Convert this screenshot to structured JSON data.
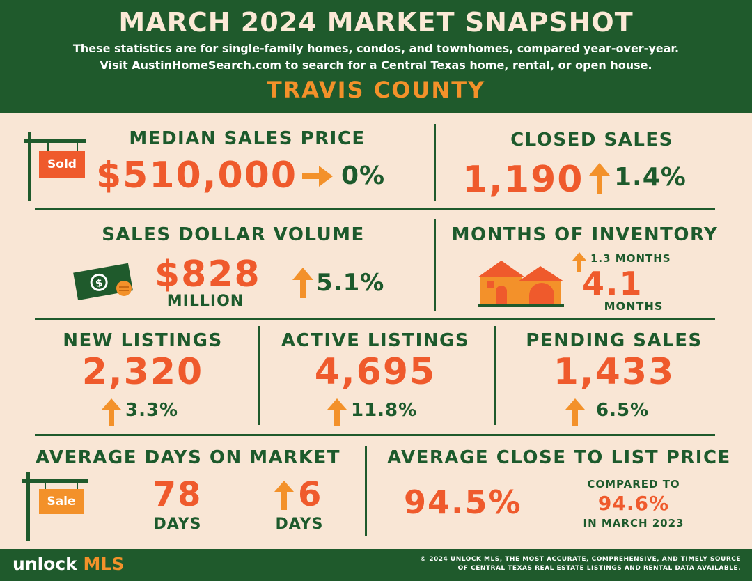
{
  "header": {
    "title": "MARCH 2024 MARKET SNAPSHOT",
    "subtitle_line1": "These statistics are for single-family homes, condos, and townhomes, compared year-over-year.",
    "subtitle_line2": "Visit AustinHomeSearch.com to search for a Central Texas home, rental, or open house.",
    "county": "TRAVIS COUNTY"
  },
  "median_sales_price": {
    "label": "MEDIAN SALES PRICE",
    "sign_text": "Sold",
    "value": "$510,000",
    "change": "0%",
    "direction": "flat"
  },
  "closed_sales": {
    "label": "CLOSED SALES",
    "value": "1,190",
    "change": "1.4%",
    "direction": "up"
  },
  "sales_dollar_volume": {
    "label": "SALES DOLLAR VOLUME",
    "value": "$828",
    "unit": "MILLION",
    "change": "5.1%",
    "direction": "up"
  },
  "months_of_inventory": {
    "label": "MONTHS OF INVENTORY",
    "change": "1.3 MONTHS",
    "value": "4.1",
    "unit": "MONTHS",
    "direction": "up"
  },
  "new_listings": {
    "label": "NEW LISTINGS",
    "value": "2,320",
    "change": "3.3%",
    "direction": "up"
  },
  "active_listings": {
    "label": "ACTIVE LISTINGS",
    "value": "4,695",
    "change": "11.8%",
    "direction": "up"
  },
  "pending_sales": {
    "label": "PENDING SALES",
    "value": "1,433",
    "change": "6.5%",
    "direction": "up"
  },
  "average_days_on_market": {
    "label": "AVERAGE DAYS ON MARKET",
    "sign_text": "Sale",
    "value": "78",
    "unit": "DAYS",
    "change": "6",
    "change_unit": "DAYS",
    "direction": "up"
  },
  "average_close_to_list": {
    "label": "AVERAGE CLOSE TO LIST PRICE",
    "value": "94.5%",
    "compared_label": "COMPARED TO",
    "compared_value": "94.6%",
    "compared_period": "IN MARCH 2023"
  },
  "footer": {
    "brand_prefix": "unlock",
    "brand_suffix": "MLS",
    "copyright_line1": "© 2024 UNLOCK MLS, THE MOST ACCURATE, COMPREHENSIVE, AND TIMELY SOURCE",
    "copyright_line2": "OF CENTRAL TEXAS REAL ESTATE LISTINGS AND RENTAL DATA AVAILABLE."
  },
  "colors": {
    "dark_green": "#1f5a2c",
    "cream": "#f9e6d5",
    "red_orange": "#ef5a2c",
    "amber": "#f3912a"
  }
}
